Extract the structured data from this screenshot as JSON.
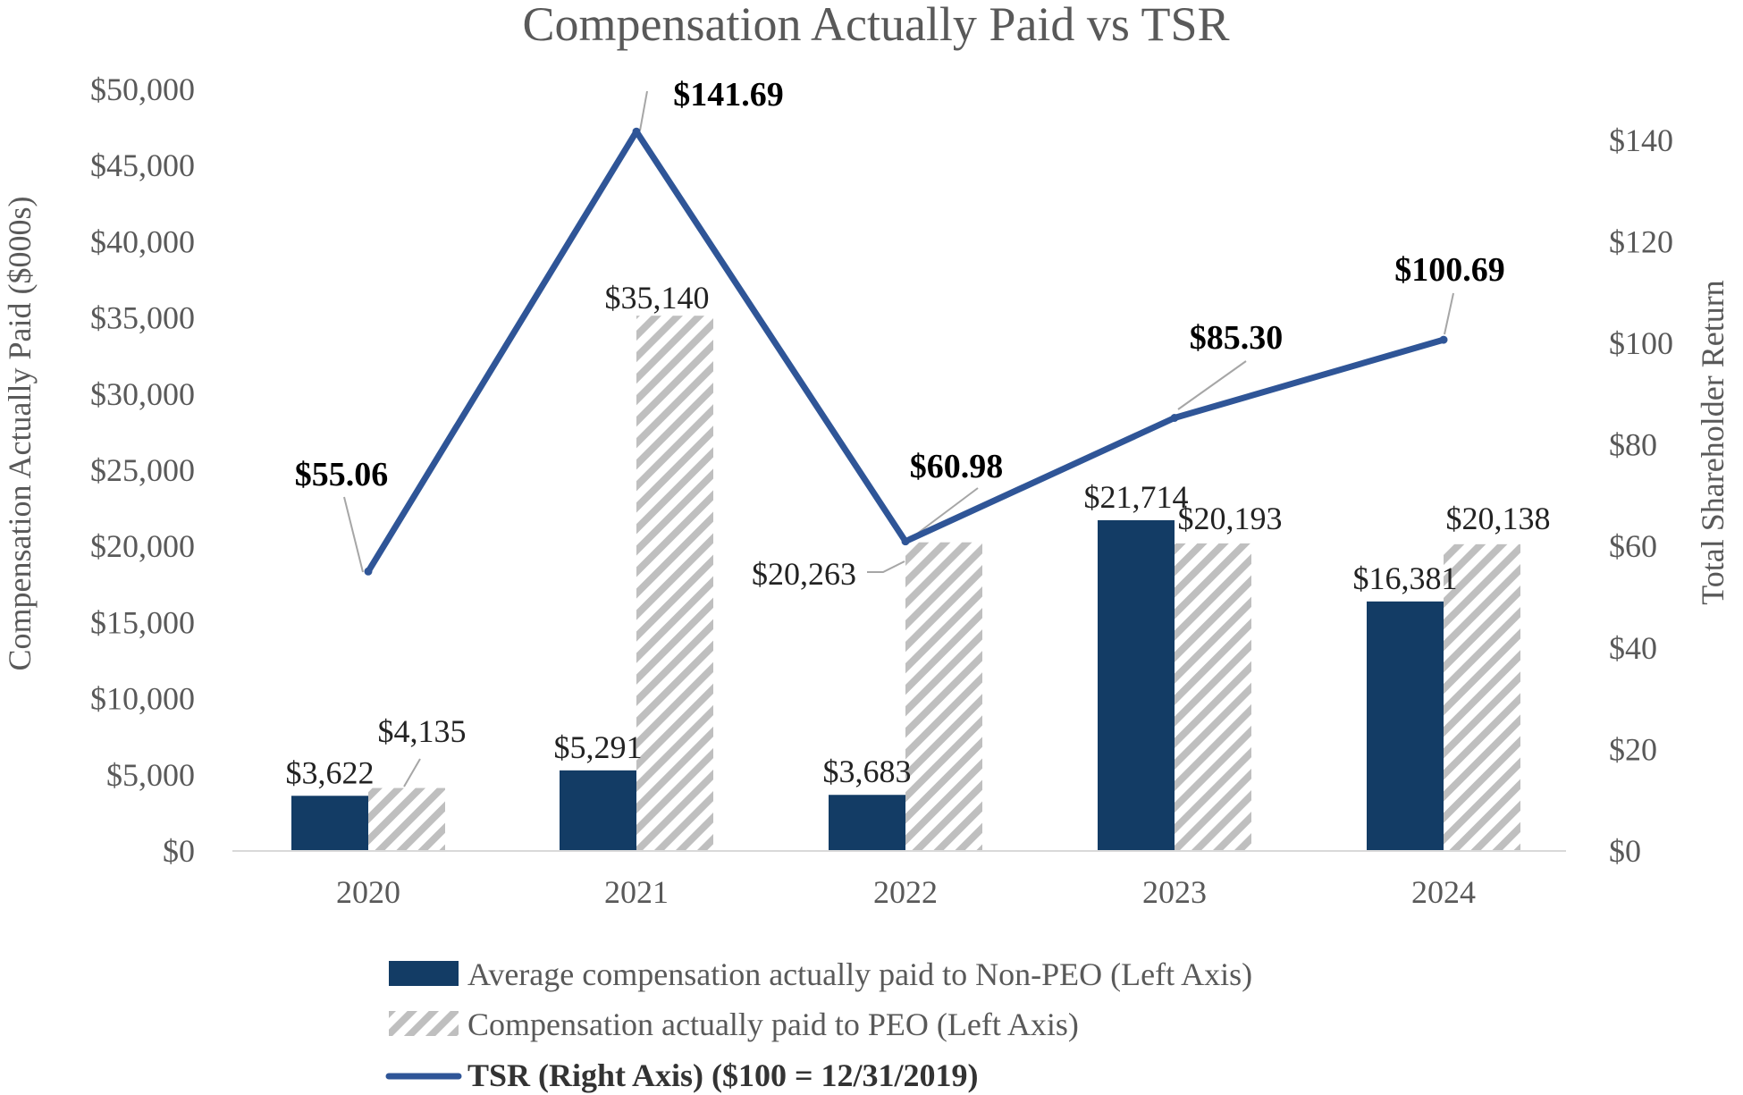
{
  "chart_data": {
    "type": "bar",
    "title": "Compensation Actually Paid vs TSR",
    "categories": [
      "2020",
      "2021",
      "2022",
      "2023",
      "2024"
    ],
    "y_left": {
      "label": "Compensation Actually Paid ($000s)",
      "range": [
        0,
        50000
      ],
      "ticks": [
        0,
        5000,
        10000,
        15000,
        20000,
        25000,
        30000,
        35000,
        40000,
        45000,
        50000
      ],
      "tick_labels": [
        "$0",
        "$5,000",
        "$10,000",
        "$15,000",
        "$20,000",
        "$25,000",
        "$30,000",
        "$35,000",
        "$40,000",
        "$45,000",
        "$50,000"
      ]
    },
    "y_right": {
      "label": "Total Shareholder Return",
      "range": [
        0,
        150
      ],
      "ticks": [
        0,
        20,
        40,
        60,
        80,
        100,
        120,
        140
      ],
      "tick_labels": [
        "$0",
        "$20",
        "$40",
        "$60",
        "$80",
        "$100",
        "$120",
        "$140"
      ]
    },
    "series": [
      {
        "name": "Average compensation actually paid to Non-PEO (Left Axis)",
        "kind": "bar",
        "axis": "left",
        "color": "#133C65",
        "pattern": "solid",
        "values": [
          3622,
          5291,
          3683,
          21714,
          16381
        ],
        "labels": [
          "$3,622",
          "$5,291",
          "$3,683",
          "$21,714",
          "$16,381"
        ]
      },
      {
        "name": "Compensation actually paid to PEO (Left Axis)",
        "kind": "bar",
        "axis": "left",
        "color": "#BFBFBF",
        "pattern": "diagonal-hatch",
        "values": [
          4135,
          35140,
          20263,
          20193,
          20138
        ],
        "labels": [
          "$4,135",
          "$35,140",
          "$20,263",
          "$20,193",
          "$20,138"
        ]
      },
      {
        "name": "TSR (Right Axis) ($100 = 12/31/2019)",
        "kind": "line",
        "axis": "right",
        "color": "#2F5597",
        "values": [
          55.06,
          141.69,
          60.98,
          85.3,
          100.69
        ],
        "labels": [
          "$55.06",
          "$141.69",
          "$60.98",
          "$85.30",
          "$100.69"
        ]
      }
    ],
    "legend_position": "bottom",
    "grid": false
  }
}
